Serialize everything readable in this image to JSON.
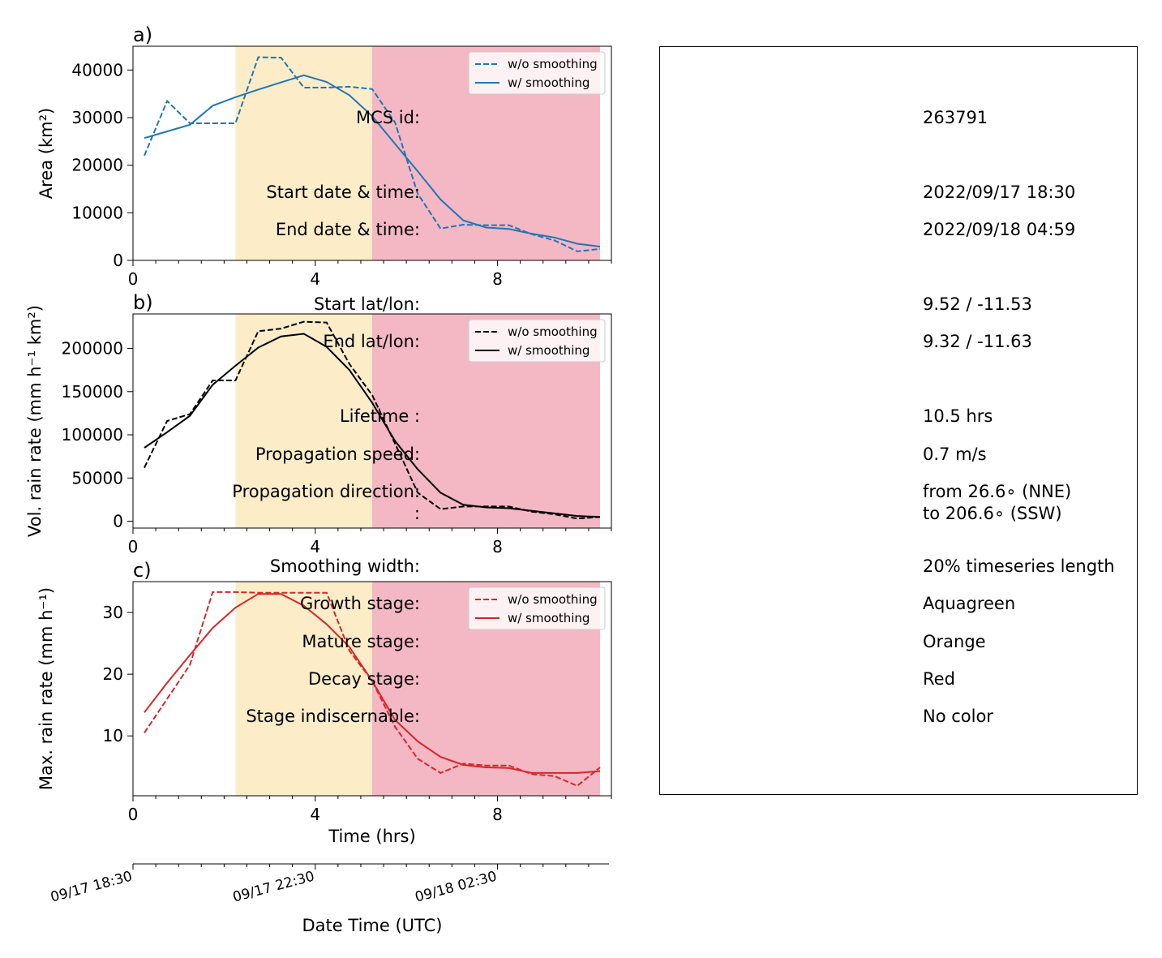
{
  "colors": {
    "mature_band": "#FDECC8",
    "decay_band": "#F4B7C4",
    "area_series": "#1f77b4",
    "volrain_series": "#000000",
    "maxrain_series": "#d62728"
  },
  "chart_data": [
    {
      "type": "line",
      "panel_label": "a)",
      "xlabel": "",
      "ylabel": "Area  (km²)",
      "xlim": [
        0,
        10.5
      ],
      "ylim": [
        0,
        45000
      ],
      "xticks": [
        0,
        4,
        8
      ],
      "yticks": [
        0,
        10000,
        20000,
        30000,
        40000
      ],
      "grid": false,
      "legend": "top-right",
      "shaded_stages": [
        {
          "stage": "mature",
          "x_start": 2.25,
          "x_end": 5.25
        },
        {
          "stage": "decay",
          "x_start": 5.25,
          "x_end": 10.25
        }
      ],
      "series": [
        {
          "name": "w/o smoothing",
          "style": "dashed",
          "x": [
            0.25,
            0.75,
            1.25,
            1.75,
            2.25,
            2.75,
            3.25,
            3.75,
            4.25,
            4.75,
            5.25,
            5.75,
            6.25,
            6.75,
            7.25,
            7.75,
            8.25,
            8.75,
            9.25,
            9.75,
            10.25
          ],
          "y": [
            22000,
            33500,
            28800,
            28800,
            28800,
            42700,
            42600,
            36300,
            36300,
            36500,
            36000,
            29000,
            14000,
            6700,
            7500,
            7400,
            7400,
            5500,
            4200,
            1900,
            2400
          ]
        },
        {
          "name": "w/ smoothing",
          "style": "solid",
          "x": [
            0.25,
            0.75,
            1.25,
            1.75,
            2.25,
            2.75,
            3.25,
            3.75,
            4.25,
            4.75,
            5.25,
            5.75,
            6.25,
            6.75,
            7.25,
            7.75,
            8.25,
            8.75,
            9.25,
            9.75,
            10.25
          ],
          "y": [
            25700,
            27100,
            28500,
            32500,
            34300,
            35900,
            37400,
            38900,
            37500,
            34700,
            30300,
            24500,
            18700,
            12800,
            8400,
            6900,
            6600,
            5600,
            4800,
            3500,
            2900
          ]
        }
      ]
    },
    {
      "type": "line",
      "panel_label": "b)",
      "xlabel": "",
      "ylabel": "Vol. rain rate (mm h⁻¹ km²)",
      "xlim": [
        0,
        10.5
      ],
      "ylim": [
        -8000,
        240000
      ],
      "xticks": [
        0,
        4,
        8
      ],
      "yticks": [
        0,
        50000,
        100000,
        150000,
        200000
      ],
      "grid": false,
      "legend": "top-right",
      "shaded_stages": [
        {
          "stage": "mature",
          "x_start": 2.25,
          "x_end": 5.25
        },
        {
          "stage": "decay",
          "x_start": 5.25,
          "x_end": 10.25
        }
      ],
      "series": [
        {
          "name": "w/o smoothing",
          "style": "dashed",
          "x": [
            0.25,
            0.75,
            1.25,
            1.75,
            2.25,
            2.75,
            3.25,
            3.75,
            4.25,
            4.75,
            5.25,
            5.75,
            6.25,
            6.75,
            7.25,
            7.75,
            8.25,
            8.75,
            9.25,
            9.75,
            10.25
          ],
          "y": [
            62000,
            116000,
            124000,
            163000,
            163000,
            220000,
            223000,
            231000,
            230000,
            182000,
            146000,
            90000,
            33000,
            14000,
            17000,
            17000,
            17000,
            11000,
            8000,
            3000,
            5000
          ]
        },
        {
          "name": "w/ smoothing",
          "style": "solid",
          "x": [
            0.25,
            0.75,
            1.25,
            1.75,
            2.25,
            2.75,
            3.25,
            3.75,
            4.25,
            4.75,
            5.25,
            5.75,
            6.25,
            6.75,
            7.25,
            7.75,
            8.25,
            8.75,
            9.25,
            9.75,
            10.25
          ],
          "y": [
            85000,
            103000,
            122000,
            158000,
            180000,
            201000,
            214000,
            217000,
            202000,
            175000,
            137000,
            93000,
            60000,
            33000,
            19000,
            16000,
            15000,
            12000,
            9000,
            6000,
            5000
          ]
        }
      ]
    },
    {
      "type": "line",
      "panel_label": "c)",
      "xlabel": "Time (hrs)",
      "ylabel": "Max. rain rate  (mm h⁻¹)",
      "xlim": [
        0,
        10.5
      ],
      "ylim": [
        0.3,
        35
      ],
      "xticks": [
        0,
        4,
        8
      ],
      "yticks": [
        10,
        20,
        30
      ],
      "grid": false,
      "legend": "top-right",
      "shaded_stages": [
        {
          "stage": "mature",
          "x_start": 2.25,
          "x_end": 5.25
        },
        {
          "stage": "decay",
          "x_start": 5.25,
          "x_end": 10.25
        }
      ],
      "series": [
        {
          "name": "w/o smoothing",
          "style": "dashed",
          "x": [
            0.25,
            0.75,
            1.25,
            1.75,
            2.25,
            2.75,
            3.25,
            3.75,
            4.25,
            4.75,
            5.25,
            5.75,
            6.25,
            6.75,
            7.25,
            7.75,
            8.25,
            8.75,
            9.25,
            9.75,
            10.25
          ],
          "y": [
            10.5,
            16.0,
            21.5,
            33.3,
            33.3,
            33.2,
            33.2,
            33.2,
            33.2,
            23.8,
            18.9,
            11.5,
            6.3,
            4.0,
            5.5,
            5.2,
            5.2,
            3.8,
            3.5,
            1.9,
            4.9
          ]
        },
        {
          "name": "w/ smoothing",
          "style": "solid",
          "x": [
            0.25,
            0.75,
            1.25,
            1.75,
            2.25,
            2.75,
            3.25,
            3.75,
            4.25,
            4.75,
            5.25,
            5.75,
            6.25,
            6.75,
            7.25,
            7.75,
            8.25,
            8.75,
            9.25,
            9.75,
            10.25
          ],
          "y": [
            13.8,
            18.6,
            23.1,
            27.5,
            30.8,
            33.0,
            33.0,
            31.1,
            28.1,
            24.4,
            18.9,
            12.6,
            9.1,
            6.6,
            5.3,
            4.9,
            4.8,
            4.0,
            4.0,
            4.0,
            4.3
          ]
        }
      ]
    }
  ],
  "datetime_axis": {
    "label": "Date Time (UTC)",
    "tick_labels": [
      "09/17 18:30",
      "09/17 22:30",
      "09/18 02:30"
    ],
    "major_hours": [
      0,
      4,
      8
    ],
    "minor_step_hours": 0.5
  },
  "info": {
    "rows": [
      {
        "label": "MCS id:",
        "value": "263791"
      },
      {
        "label": "Start date & time:",
        "value": "2022/09/17 18:30"
      },
      {
        "label": "End date & time:",
        "value": "2022/09/18 04:59"
      },
      {
        "label": "Start lat/lon:",
        "value": "9.52 / -11.53"
      },
      {
        "label": "End lat/lon:",
        "value": "9.32 / -11.63"
      },
      {
        "label": "Lifetime :",
        "value": "10.5 hrs"
      },
      {
        "label": "Propagation speed:",
        "value": "0.7 m/s"
      },
      {
        "label": "Propagation direction:",
        "value": "from  26.6∘ (NNE)"
      },
      {
        "label": ":",
        "value": "to   206.6∘ (SSW)"
      },
      {
        "label": "Smoothing width:",
        "value": "20% timeseries length"
      },
      {
        "label": "Growth stage:",
        "value": "Aquagreen"
      },
      {
        "label": "Mature stage:",
        "value": "Orange"
      },
      {
        "label": "Decay stage:",
        "value": "Red"
      },
      {
        "label": "Stage indiscernable:",
        "value": "No color"
      }
    ]
  }
}
